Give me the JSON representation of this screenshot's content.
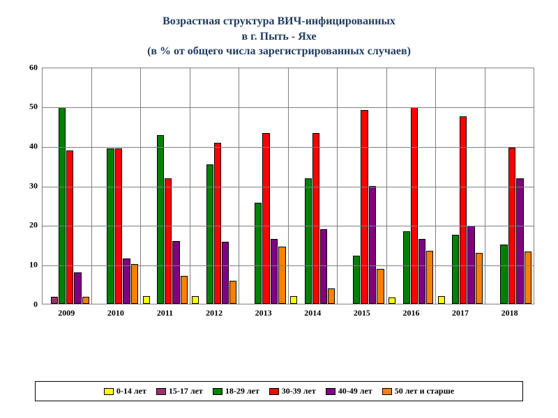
{
  "title_line1": "Возрастная структура ВИЧ-инфицированных",
  "title_line2": "в г. Пыть - Яхе",
  "title_line3": "(в % от общего числа зарегистрированных случаев)",
  "title_color": "#1f3a5f",
  "title_fontsize": 16,
  "chart": {
    "type": "bar",
    "ylim": [
      0,
      60
    ],
    "ytick_step": 10,
    "yticks": [
      "0",
      "10",
      "20",
      "30",
      "40",
      "50",
      "60"
    ],
    "background_color": "#ffffff",
    "grid_color": "#7f7f7f",
    "border_color": "#7f7f7f",
    "bar_border_color": "#000000",
    "categories": [
      "2009",
      "2010",
      "2011",
      "2012",
      "2013",
      "2014",
      "2015",
      "2016",
      "2017",
      "2018"
    ],
    "series": [
      {
        "label": "0-14 лет",
        "color": "#ffff00",
        "values": [
          0,
          0,
          2,
          2,
          0,
          2,
          0,
          1.5,
          2,
          0
        ]
      },
      {
        "label": "15-17 лет",
        "color": "#993366",
        "values": [
          1.8,
          0,
          0,
          0,
          0,
          0,
          0,
          0,
          0,
          0
        ]
      },
      {
        "label": "18-29 лет",
        "color": "#008000",
        "values": [
          50,
          39.5,
          43,
          35.5,
          25.7,
          32,
          12.3,
          18.5,
          17.5,
          15
        ]
      },
      {
        "label": "30-39 лет",
        "color": "#ff0000",
        "values": [
          39,
          39.5,
          32,
          41,
          43.5,
          43.5,
          49.3,
          50,
          47.8,
          39.7
        ]
      },
      {
        "label": "40-49 лет",
        "color": "#800080",
        "values": [
          8,
          11.5,
          16,
          15.8,
          16.5,
          19,
          30,
          16.5,
          19.8,
          32
        ]
      },
      {
        "label": "50 лет и старше",
        "color": "#ff8000",
        "values": [
          1.8,
          10,
          7,
          5.8,
          14.5,
          3.8,
          8.8,
          13.5,
          13,
          13.2
        ]
      }
    ]
  }
}
